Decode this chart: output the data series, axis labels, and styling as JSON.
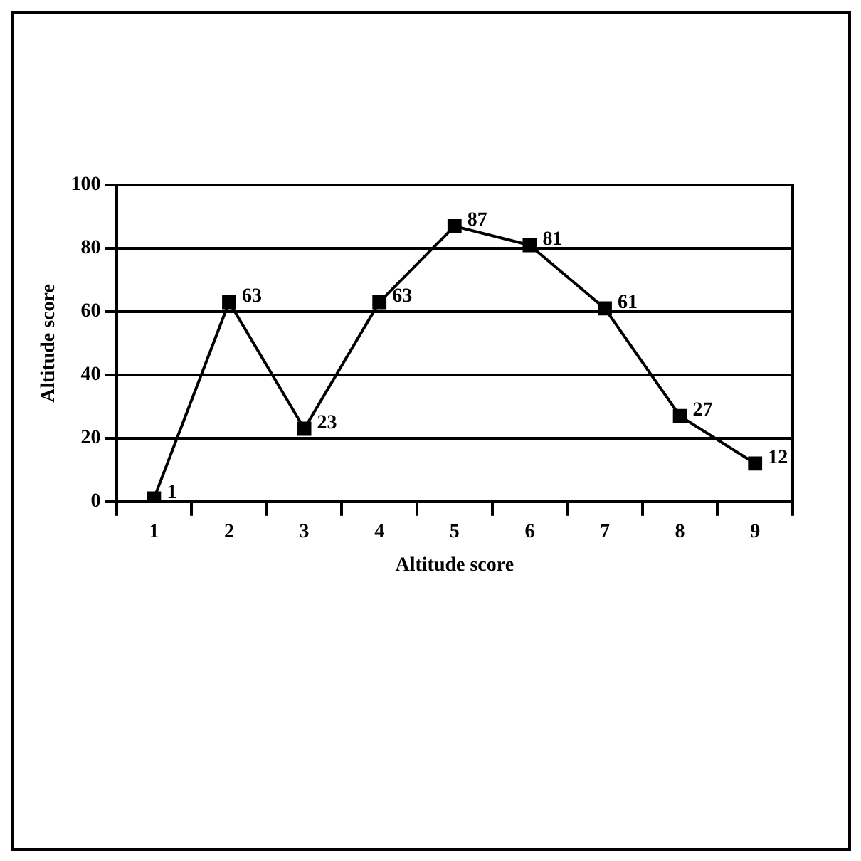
{
  "chart_data": {
    "type": "line",
    "xlabel": "Altitude score",
    "ylabel": "Altitude score",
    "categories": [
      "1",
      "2",
      "3",
      "4",
      "5",
      "6",
      "7",
      "8",
      "9"
    ],
    "series": [
      {
        "color": "#000000",
        "values": [
          1,
          63,
          23,
          63,
          87,
          81,
          61,
          27,
          12
        ]
      }
    ],
    "ylim": [
      0,
      100
    ],
    "yticks": [
      0,
      20,
      40,
      60,
      80,
      100
    ],
    "grid": "y",
    "legend": false,
    "marker": "square",
    "line_style": "solid",
    "data_labels": true
  }
}
